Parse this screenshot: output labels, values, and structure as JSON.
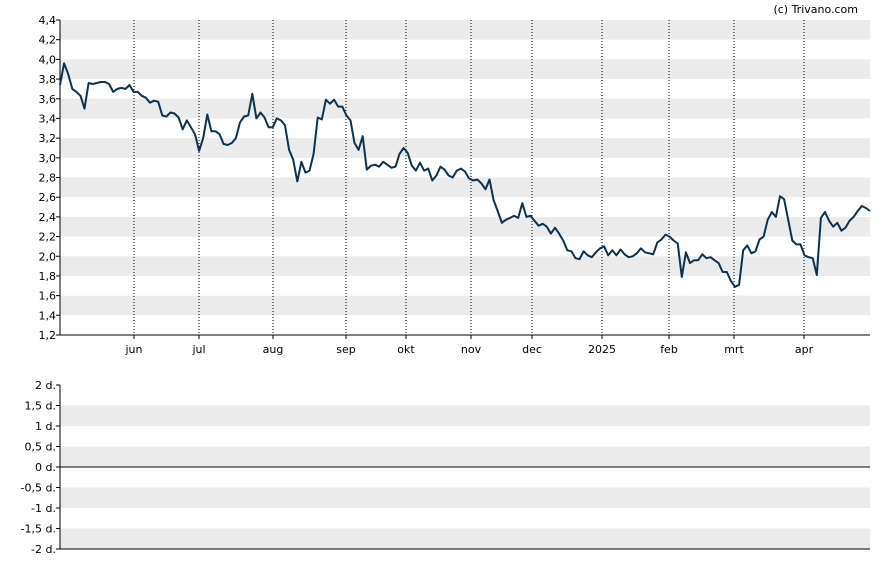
{
  "credit": "(c) Trivano.com",
  "colors": {
    "line": "#0b3350",
    "band": "#ebebeb",
    "axis": "#000000",
    "vgrid": "#000000"
  },
  "chart_data": [
    {
      "type": "line",
      "title": "",
      "xlabel": "",
      "ylabel": "",
      "ylim": [
        1.2,
        4.4
      ],
      "yticks": [
        "1,2",
        "1,4",
        "1,6",
        "1,8",
        "2,0",
        "2,2",
        "2,4",
        "2,6",
        "2,8",
        "3,0",
        "3,2",
        "3,4",
        "3,6",
        "3,8",
        "4,0",
        "4,2",
        "4,4"
      ],
      "xticks": [
        "jun",
        "jul",
        "aug",
        "sep",
        "okt",
        "nov",
        "dec",
        "2025",
        "feb",
        "mrt",
        "apr"
      ],
      "grid": "vertical dotted lines at month ticks, alternating horizontal bands",
      "series": [
        {
          "values": [
            3.74,
            3.96,
            3.85,
            3.7,
            3.67,
            3.63,
            3.5,
            3.76,
            3.75,
            3.76,
            3.77,
            3.77,
            3.75,
            3.67,
            3.7,
            3.71,
            3.7,
            3.74,
            3.67,
            3.67,
            3.63,
            3.61,
            3.56,
            3.58,
            3.57,
            3.43,
            3.42,
            3.46,
            3.45,
            3.41,
            3.29,
            3.38,
            3.31,
            3.24,
            3.07,
            3.2,
            3.44,
            3.27,
            3.27,
            3.24,
            3.14,
            3.13,
            3.15,
            3.2,
            3.36,
            3.42,
            3.43,
            3.65,
            3.4,
            3.46,
            3.41,
            3.31,
            3.31,
            3.4,
            3.38,
            3.33,
            3.08,
            2.98,
            2.76,
            2.96,
            2.85,
            2.87,
            3.04,
            3.41,
            3.39,
            3.59,
            3.55,
            3.59,
            3.52,
            3.52,
            3.43,
            3.38,
            3.15,
            3.08,
            3.22,
            2.88,
            2.92,
            2.93,
            2.91,
            2.96,
            2.93,
            2.9,
            2.91,
            3.04,
            3.1,
            3.05,
            2.92,
            2.87,
            2.95,
            2.87,
            2.89,
            2.77,
            2.82,
            2.91,
            2.88,
            2.82,
            2.8,
            2.87,
            2.89,
            2.86,
            2.79,
            2.77,
            2.78,
            2.74,
            2.68,
            2.78,
            2.57,
            2.46,
            2.34,
            2.37,
            2.39,
            2.41,
            2.39,
            2.54,
            2.4,
            2.41,
            2.36,
            2.31,
            2.33,
            2.3,
            2.23,
            2.29,
            2.23,
            2.16,
            2.06,
            2.05,
            1.98,
            1.97,
            2.05,
            2.01,
            1.99,
            2.04,
            2.08,
            2.1,
            2.01,
            2.06,
            2.01,
            2.07,
            2.02,
            1.99,
            2.0,
            2.03,
            2.08,
            2.04,
            2.03,
            2.02,
            2.14,
            2.17,
            2.22,
            2.2,
            2.16,
            2.13,
            1.79,
            2.04,
            1.93,
            1.96,
            1.96,
            2.02,
            1.98,
            1.99,
            1.96,
            1.93,
            1.84,
            1.84,
            1.75,
            1.69,
            1.71,
            2.06,
            2.11,
            2.03,
            2.05,
            2.17,
            2.2,
            2.37,
            2.45,
            2.4,
            2.61,
            2.58,
            2.37,
            2.16,
            2.12,
            2.12,
            2.01,
            1.99,
            1.98,
            1.81,
            2.39,
            2.45,
            2.36,
            2.3,
            2.34,
            2.26,
            2.29,
            2.36,
            2.4,
            2.46,
            2.51,
            2.49,
            2.46
          ]
        }
      ]
    },
    {
      "type": "line",
      "title": "",
      "xlabel": "",
      "ylabel": "",
      "ylim": [
        -2,
        2
      ],
      "yticks": [
        "-2 d.",
        "-1,5 d.",
        "-1 d.",
        "-0,5 d.",
        "0 d.",
        "0,5 d.",
        "1 d.",
        "1,5 d.",
        "2 d."
      ],
      "series": []
    }
  ]
}
